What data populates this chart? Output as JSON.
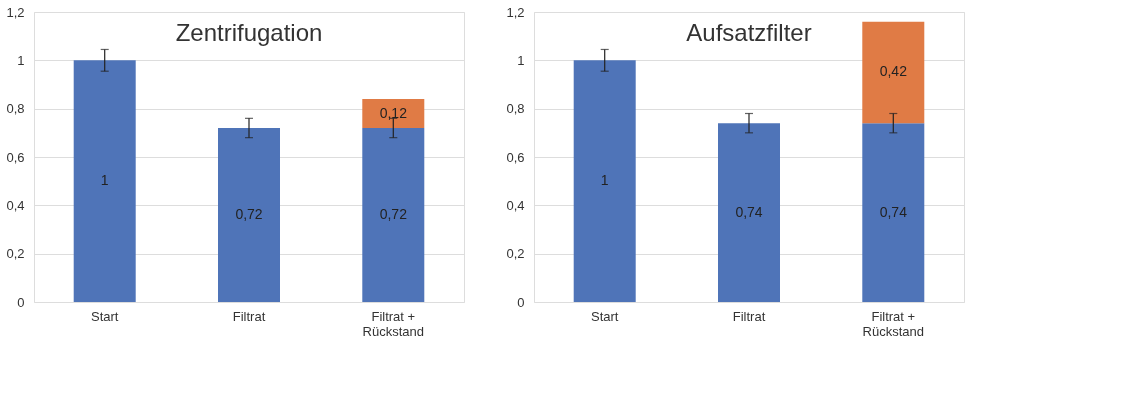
{
  "chart_data": [
    {
      "type": "bar",
      "title": "Zentrifugation",
      "categories": [
        "Start",
        "Filtrat",
        "Filtrat + Rückstand"
      ],
      "stacked": true,
      "grid": "y",
      "ylim": [
        0,
        1.2
      ],
      "yticks": [
        0,
        {
          "value": 0.2,
          "label": "0,2"
        },
        {
          "value": 0.4,
          "label": "0,4"
        },
        {
          "value": 0.6,
          "label": "0,6"
        },
        {
          "value": 0.8,
          "label": "0,8"
        },
        1,
        {
          "value": 1.2,
          "label": "1,2"
        }
      ],
      "series": [
        {
          "color": "#4f74b8",
          "values": [
            1,
            0.72,
            0.72
          ],
          "errors": [
            0.045,
            0.04,
            0.04
          ],
          "value_labels": [
            "1",
            "0,72",
            "0,72"
          ]
        },
        {
          "color": "#e07b45",
          "values": [
            null,
            null,
            0.12
          ],
          "value_labels": [
            null,
            null,
            "0,12"
          ]
        }
      ]
    },
    {
      "type": "bar",
      "title": "Aufsatzfilter",
      "categories": [
        "Start",
        "Filtrat",
        "Filtrat + Rückstand"
      ],
      "stacked": true,
      "grid": "y",
      "ylim": [
        0,
        1.2
      ],
      "yticks": [
        0,
        {
          "value": 0.2,
          "label": "0,2"
        },
        {
          "value": 0.4,
          "label": "0,4"
        },
        {
          "value": 0.6,
          "label": "0,6"
        },
        {
          "value": 0.8,
          "label": "0,8"
        },
        1,
        {
          "value": 1.2,
          "label": "1,2"
        }
      ],
      "series": [
        {
          "color": "#4f74b8",
          "values": [
            1,
            0.74,
            0.74
          ],
          "errors": [
            0.045,
            0.04,
            0.04
          ],
          "value_labels": [
            "1",
            "0,74",
            "0,74"
          ]
        },
        {
          "color": "#e07b45",
          "values": [
            null,
            null,
            0.42
          ],
          "value_labels": [
            null,
            null,
            "0,42"
          ]
        }
      ]
    }
  ]
}
